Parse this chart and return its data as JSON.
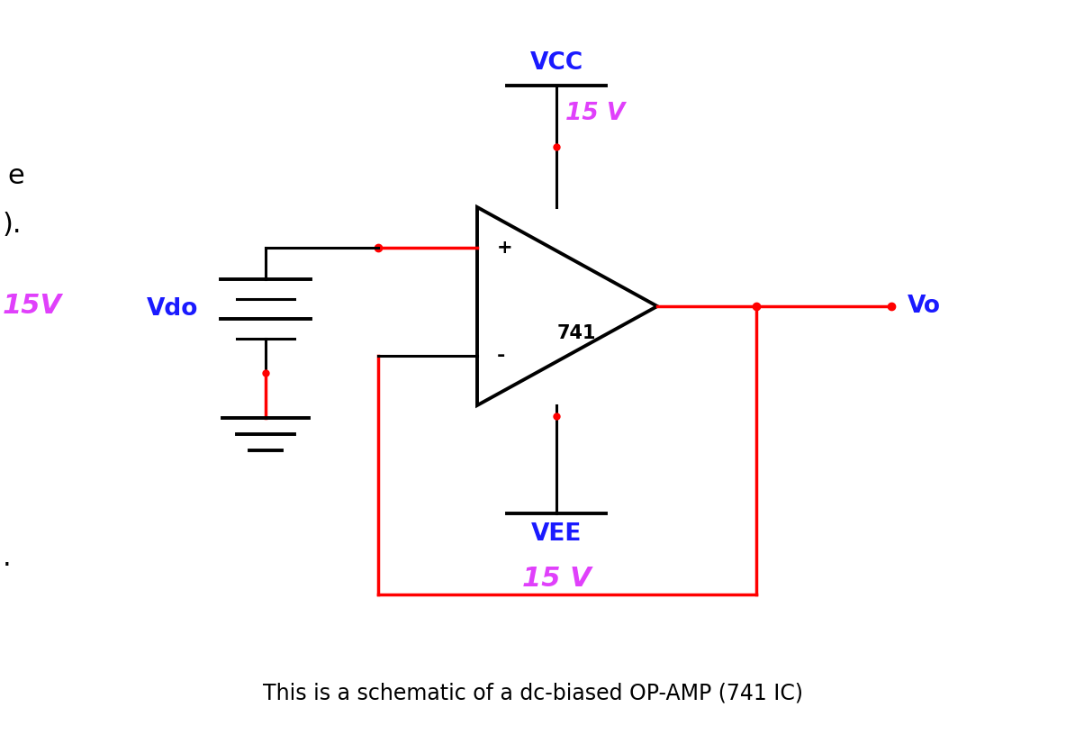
{
  "background_color": "#ffffff",
  "red_color": "#ff0000",
  "black_color": "#000000",
  "blue_color": "#1a1aff",
  "pink_color": "#e040fb",
  "title_text": "This is a schematic of a dc-biased OP-AMP (741 IC)",
  "title_fontsize": 17,
  "vcc_label": "VCC",
  "vcc_voltage": "15 V",
  "vee_label": "VEE",
  "vee_voltage": "15 V",
  "vdo_label": "Vdo",
  "vo_label": "Vo",
  "amp_label": "741",
  "plus_label": "+",
  "minus_label": "-",
  "left_label_e": "e",
  "left_label_paren": ").",
  "left_label_15v": "15V",
  "left_label_dot": ".",
  "lw_thick": 2.8,
  "lw_thin": 2.2,
  "lw_red": 2.5
}
